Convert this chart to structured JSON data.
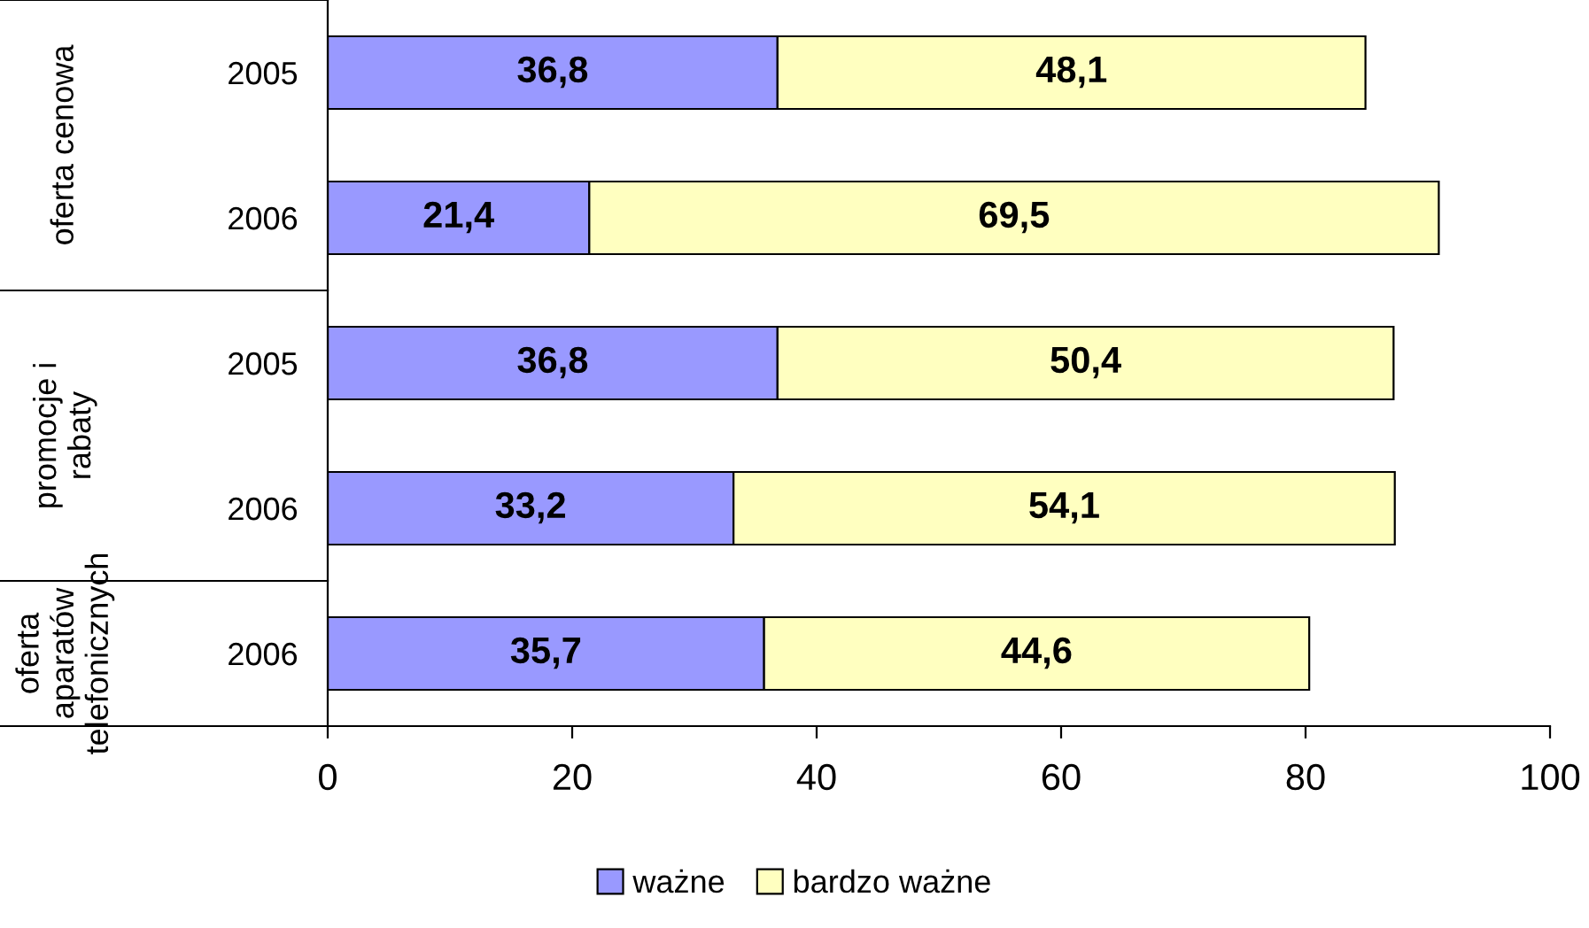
{
  "chart_data": {
    "type": "bar",
    "orientation": "horizontal",
    "stacked": true,
    "categories": [
      "2005",
      "2006",
      "2005",
      "2006",
      "2006"
    ],
    "series": [
      {
        "name": "ważne",
        "color": "#9999ff",
        "values": [
          36.8,
          21.4,
          36.8,
          33.2,
          35.7
        ],
        "value_labels": [
          "36,8",
          "21,4",
          "36,8",
          "33,2",
          "35,7"
        ]
      },
      {
        "name": "bardzo ważne",
        "color": "#ffffc0",
        "values": [
          48.1,
          69.5,
          50.4,
          54.1,
          44.6
        ],
        "value_labels": [
          "48,1",
          "69,5",
          "50,4",
          "54,1",
          "44,6"
        ]
      }
    ],
    "annotations": [
      "oferta cenowa",
      "promocje i\nrabaty",
      "oferta\naparatów\ntelefonicznych"
    ],
    "xlim": [
      0,
      100
    ],
    "xticks": [
      0,
      20,
      40,
      60,
      80,
      100
    ],
    "grid": false,
    "legend": "bottom"
  }
}
